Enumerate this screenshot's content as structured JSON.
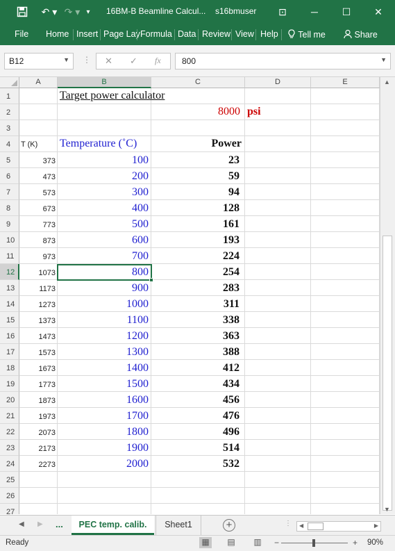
{
  "window": {
    "title": "16BM-B Beamline Calcul...",
    "user": "s16bmuser",
    "minimize": "─",
    "restore": "☐",
    "close": "✕",
    "ribbon_display": "⊡"
  },
  "quick_access": {
    "save": "💾",
    "undo": "↶ ▾",
    "redo": "↷ ▾",
    "customize": "▾"
  },
  "ribbon": {
    "tabs": [
      "File",
      "Home",
      "Insert",
      "Page Lay",
      "Formula",
      "Data",
      "Review",
      "View",
      "Help"
    ],
    "tell_me": "Tell me",
    "share": "Share"
  },
  "formula_bar": {
    "name_box": "B12",
    "cancel": "✕",
    "enter": "✓",
    "fx": "fx",
    "value": "800"
  },
  "columns": [
    "A",
    "B",
    "C",
    "D",
    "E"
  ],
  "sheet": {
    "title": "Target power calculator",
    "pressure_value": "8000",
    "pressure_unit": "psi",
    "header_a": "T (K)",
    "header_b": "Temperature (˚C)",
    "header_c": "Power",
    "rows": [
      {
        "r": "5",
        "k": "373",
        "t": "100",
        "p": "23"
      },
      {
        "r": "6",
        "k": "473",
        "t": "200",
        "p": "59"
      },
      {
        "r": "7",
        "k": "573",
        "t": "300",
        "p": "94"
      },
      {
        "r": "8",
        "k": "673",
        "t": "400",
        "p": "128"
      },
      {
        "r": "9",
        "k": "773",
        "t": "500",
        "p": "161"
      },
      {
        "r": "10",
        "k": "873",
        "t": "600",
        "p": "193"
      },
      {
        "r": "11",
        "k": "973",
        "t": "700",
        "p": "224"
      },
      {
        "r": "12",
        "k": "1073",
        "t": "800",
        "p": "254"
      },
      {
        "r": "13",
        "k": "1173",
        "t": "900",
        "p": "283"
      },
      {
        "r": "14",
        "k": "1273",
        "t": "1000",
        "p": "311"
      },
      {
        "r": "15",
        "k": "1373",
        "t": "1100",
        "p": "338"
      },
      {
        "r": "16",
        "k": "1473",
        "t": "1200",
        "p": "363"
      },
      {
        "r": "17",
        "k": "1573",
        "t": "1300",
        "p": "388"
      },
      {
        "r": "18",
        "k": "1673",
        "t": "1400",
        "p": "412"
      },
      {
        "r": "19",
        "k": "1773",
        "t": "1500",
        "p": "434"
      },
      {
        "r": "20",
        "k": "1873",
        "t": "1600",
        "p": "456"
      },
      {
        "r": "21",
        "k": "1973",
        "t": "1700",
        "p": "476"
      },
      {
        "r": "22",
        "k": "2073",
        "t": "1800",
        "p": "496"
      },
      {
        "r": "23",
        "k": "2173",
        "t": "1900",
        "p": "514"
      },
      {
        "r": "24",
        "k": "2273",
        "t": "2000",
        "p": "532"
      }
    ],
    "row_numbers": [
      "1",
      "2",
      "3",
      "4",
      "25",
      "26",
      "27"
    ]
  },
  "sheet_tabs": {
    "more": "...",
    "active": "PEC temp. calib.",
    "other": "Sheet1",
    "add": "+"
  },
  "status": {
    "ready": "Ready",
    "zoom": "90%",
    "zoom_level": 0.9
  },
  "colors": {
    "accent": "#217346",
    "temp_blue": "#1f1fd0",
    "psi_red": "#cc0000"
  }
}
